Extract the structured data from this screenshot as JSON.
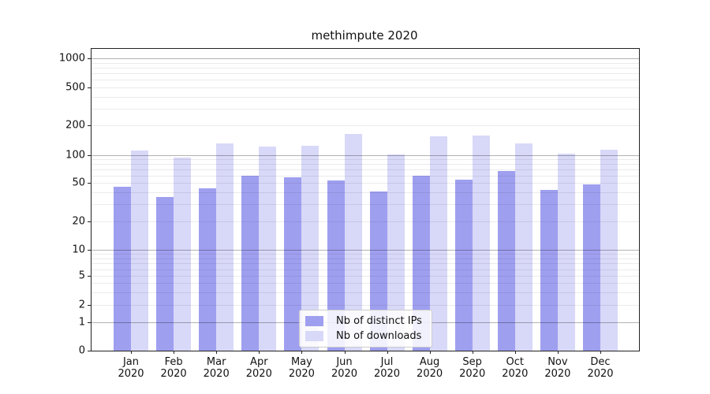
{
  "figure": {
    "title": "methimpute 2020"
  },
  "chart_data": {
    "type": "bar",
    "title": "methimpute 2020",
    "categories": [
      "Jan",
      "Feb",
      "Mar",
      "Apr",
      "May",
      "Jun",
      "Jul",
      "Aug",
      "Sep",
      "Oct",
      "Nov",
      "Dec"
    ],
    "x_year": "2020",
    "series": [
      {
        "name": "Nb of distinct IPs",
        "color": "#9f9ff0",
        "values": [
          46,
          36,
          44,
          60,
          57,
          53,
          41,
          60,
          54,
          67,
          42,
          48
        ]
      },
      {
        "name": "Nb of downloads",
        "color": "#d8d8f8",
        "values": [
          110,
          94,
          131,
          121,
          124,
          163,
          101,
          155,
          158,
          132,
          102,
          114
        ]
      }
    ],
    "y_ticks": [
      0,
      1,
      2,
      5,
      10,
      20,
      50,
      100,
      200,
      500,
      1000
    ],
    "ylim": [
      0,
      1000
    ],
    "yscale": "log-like with zero baseline",
    "xlabel": "",
    "ylabel": "",
    "grid": "horizontal, minor and major (powers of 10 darker), drawn over bars",
    "legend_position": "lower center inside plot"
  }
}
